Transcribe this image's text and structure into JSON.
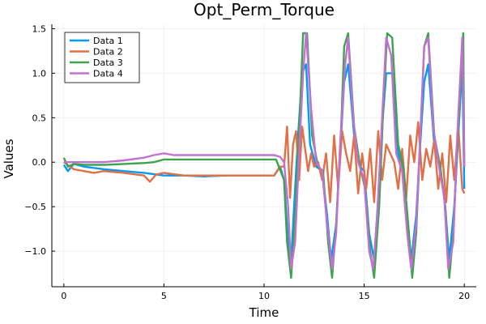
{
  "chart_data": {
    "type": "line",
    "title": "Opt_Perm_Torque",
    "xlabel": "Time",
    "ylabel": "Values",
    "xlim": [
      -0.6,
      20.6
    ],
    "ylim": [
      -1.4,
      1.55
    ],
    "xticks": [
      0,
      5,
      10,
      15,
      20
    ],
    "xtick_labels": [
      "0",
      "5",
      "10",
      "15",
      "20"
    ],
    "yticks": [
      -1.0,
      -0.5,
      0.0,
      0.5,
      1.0,
      1.5
    ],
    "ytick_labels": [
      "−1.0",
      "−0.5",
      "0.0",
      "0.5",
      "1.0",
      "1.5"
    ],
    "grid": true,
    "legend_position": "top-left",
    "series": [
      {
        "name": "Data 1",
        "color": "#009AFA",
        "x": [
          0.0,
          0.2,
          0.5,
          1.0,
          2.0,
          3.0,
          4.0,
          5.0,
          6.0,
          7.0,
          8.0,
          9.0,
          10.0,
          10.5,
          10.8,
          11.0,
          11.2,
          11.35,
          11.5,
          11.7,
          11.9,
          12.1,
          12.3,
          12.6,
          12.9,
          13.15,
          13.35,
          13.6,
          13.8,
          14.0,
          14.2,
          14.5,
          14.8,
          15.0,
          15.25,
          15.5,
          15.7,
          15.9,
          16.1,
          16.4,
          16.7,
          16.9,
          17.15,
          17.35,
          17.6,
          17.8,
          18.0,
          18.2,
          18.5,
          18.8,
          19.05,
          19.25,
          19.5,
          19.7,
          19.9,
          20.0
        ],
        "y": [
          -0.03,
          -0.1,
          -0.02,
          -0.05,
          -0.08,
          -0.1,
          -0.12,
          -0.15,
          -0.15,
          -0.16,
          -0.15,
          -0.15,
          -0.15,
          -0.15,
          -0.05,
          -0.2,
          -0.9,
          -1.1,
          -0.5,
          0.3,
          1.0,
          1.1,
          0.2,
          -0.05,
          -0.1,
          -0.6,
          -1.1,
          -0.7,
          0.1,
          0.9,
          1.1,
          0.3,
          -0.05,
          -0.1,
          -0.8,
          -1.1,
          -0.4,
          0.4,
          1.0,
          1.0,
          0.1,
          -0.1,
          -0.6,
          -1.1,
          -0.6,
          0.2,
          0.9,
          1.1,
          0.2,
          -0.05,
          -0.5,
          -1.1,
          -0.5,
          0.3,
          1.1,
          -0.3
        ]
      },
      {
        "name": "Data 2",
        "color": "#E26F46",
        "x": [
          0.0,
          0.5,
          1.0,
          1.5,
          2.0,
          3.0,
          4.0,
          4.3,
          4.6,
          5.0,
          6.0,
          7.0,
          8.0,
          9.0,
          10.0,
          10.5,
          10.8,
          11.0,
          11.15,
          11.3,
          11.45,
          11.6,
          11.75,
          11.9,
          12.05,
          12.2,
          12.35,
          12.5,
          12.7,
          12.9,
          13.1,
          13.3,
          13.5,
          13.7,
          13.9,
          14.1,
          14.3,
          14.5,
          14.7,
          14.9,
          15.1,
          15.3,
          15.5,
          15.7,
          15.9,
          16.1,
          16.3,
          16.5,
          16.7,
          16.9,
          17.1,
          17.3,
          17.5,
          17.7,
          17.9,
          18.1,
          18.3,
          18.5,
          18.7,
          18.9,
          19.1,
          19.3,
          19.5,
          19.7,
          19.9,
          20.0
        ],
        "y": [
          0.0,
          -0.08,
          -0.1,
          -0.12,
          -0.1,
          -0.12,
          -0.15,
          -0.22,
          -0.14,
          -0.12,
          -0.15,
          -0.15,
          -0.15,
          -0.15,
          -0.15,
          -0.15,
          -0.05,
          -0.05,
          0.4,
          -0.4,
          0.2,
          0.35,
          -0.2,
          0.4,
          0.15,
          -0.1,
          0.1,
          -0.05,
          0.0,
          -0.2,
          0.1,
          -0.45,
          0.3,
          -0.3,
          0.35,
          0.1,
          -0.1,
          0.3,
          -0.35,
          0.1,
          -0.3,
          0.15,
          -0.45,
          0.35,
          -0.2,
          0.2,
          0.1,
          0.0,
          -0.3,
          0.15,
          -0.4,
          0.3,
          0.0,
          0.45,
          -0.2,
          0.15,
          -0.05,
          0.25,
          -0.3,
          0.1,
          -0.45,
          0.3,
          -0.2,
          0.4,
          -0.3,
          -0.35
        ]
      },
      {
        "name": "Data 3",
        "color": "#3DA44D",
        "x": [
          0.0,
          0.2,
          0.5,
          1.0,
          2.0,
          3.0,
          4.0,
          4.5,
          5.0,
          6.0,
          7.0,
          8.0,
          9.0,
          10.0,
          10.6,
          11.0,
          11.15,
          11.35,
          11.55,
          11.8,
          11.95,
          12.15,
          12.4,
          12.7,
          12.95,
          13.2,
          13.4,
          13.6,
          13.85,
          14.0,
          14.2,
          14.5,
          14.8,
          15.05,
          15.3,
          15.5,
          15.75,
          15.95,
          16.15,
          16.4,
          16.7,
          16.95,
          17.2,
          17.4,
          17.6,
          17.85,
          18.0,
          18.2,
          18.5,
          18.8,
          19.05,
          19.25,
          19.45,
          19.7,
          19.95,
          20.0
        ],
        "y": [
          0.05,
          -0.05,
          -0.02,
          -0.03,
          -0.03,
          -0.02,
          -0.01,
          0.0,
          0.03,
          0.03,
          0.03,
          0.03,
          0.03,
          0.03,
          0.03,
          -0.2,
          -0.9,
          -1.3,
          -0.6,
          0.6,
          1.45,
          1.45,
          0.3,
          -0.05,
          -0.1,
          -0.9,
          -1.3,
          -0.7,
          0.4,
          1.3,
          1.45,
          0.4,
          -0.05,
          -0.3,
          -1.0,
          -1.3,
          -0.5,
          0.6,
          1.45,
          1.4,
          0.2,
          -0.05,
          -0.7,
          -1.3,
          -0.8,
          0.5,
          1.3,
          1.45,
          0.3,
          -0.05,
          -0.5,
          -1.3,
          -0.8,
          0.4,
          1.45,
          -0.05
        ]
      },
      {
        "name": "Data 4",
        "color": "#C271D2",
        "x": [
          0.0,
          0.5,
          1.0,
          2.0,
          3.0,
          4.0,
          4.5,
          5.0,
          5.5,
          6.0,
          7.0,
          8.0,
          9.0,
          10.0,
          10.5,
          10.8,
          11.0,
          11.2,
          11.35,
          11.55,
          11.75,
          11.95,
          12.1,
          12.35,
          12.6,
          12.9,
          13.15,
          13.4,
          13.6,
          13.8,
          14.05,
          14.2,
          14.45,
          14.7,
          15.0,
          15.25,
          15.45,
          15.65,
          15.9,
          16.1,
          16.35,
          16.6,
          16.9,
          17.15,
          17.35,
          17.6,
          17.8,
          18.0,
          18.2,
          18.45,
          18.7,
          19.0,
          19.2,
          19.45,
          19.65,
          19.9,
          20.0
        ],
        "y": [
          0.0,
          0.0,
          0.0,
          0.0,
          0.02,
          0.05,
          0.08,
          0.1,
          0.08,
          0.08,
          0.08,
          0.08,
          0.08,
          0.08,
          0.08,
          0.06,
          0.0,
          -0.5,
          -1.2,
          -0.9,
          0.1,
          1.0,
          1.45,
          0.6,
          0.0,
          -0.1,
          -0.7,
          -1.2,
          -0.8,
          0.2,
          1.1,
          1.4,
          0.5,
          0.0,
          -0.2,
          -1.0,
          -1.2,
          -0.6,
          0.5,
          1.4,
          1.2,
          0.1,
          -0.1,
          -0.8,
          -1.2,
          -0.7,
          0.3,
          1.3,
          1.4,
          0.4,
          0.0,
          -0.4,
          -1.2,
          -0.9,
          0.3,
          1.4,
          -0.05
        ]
      }
    ]
  }
}
